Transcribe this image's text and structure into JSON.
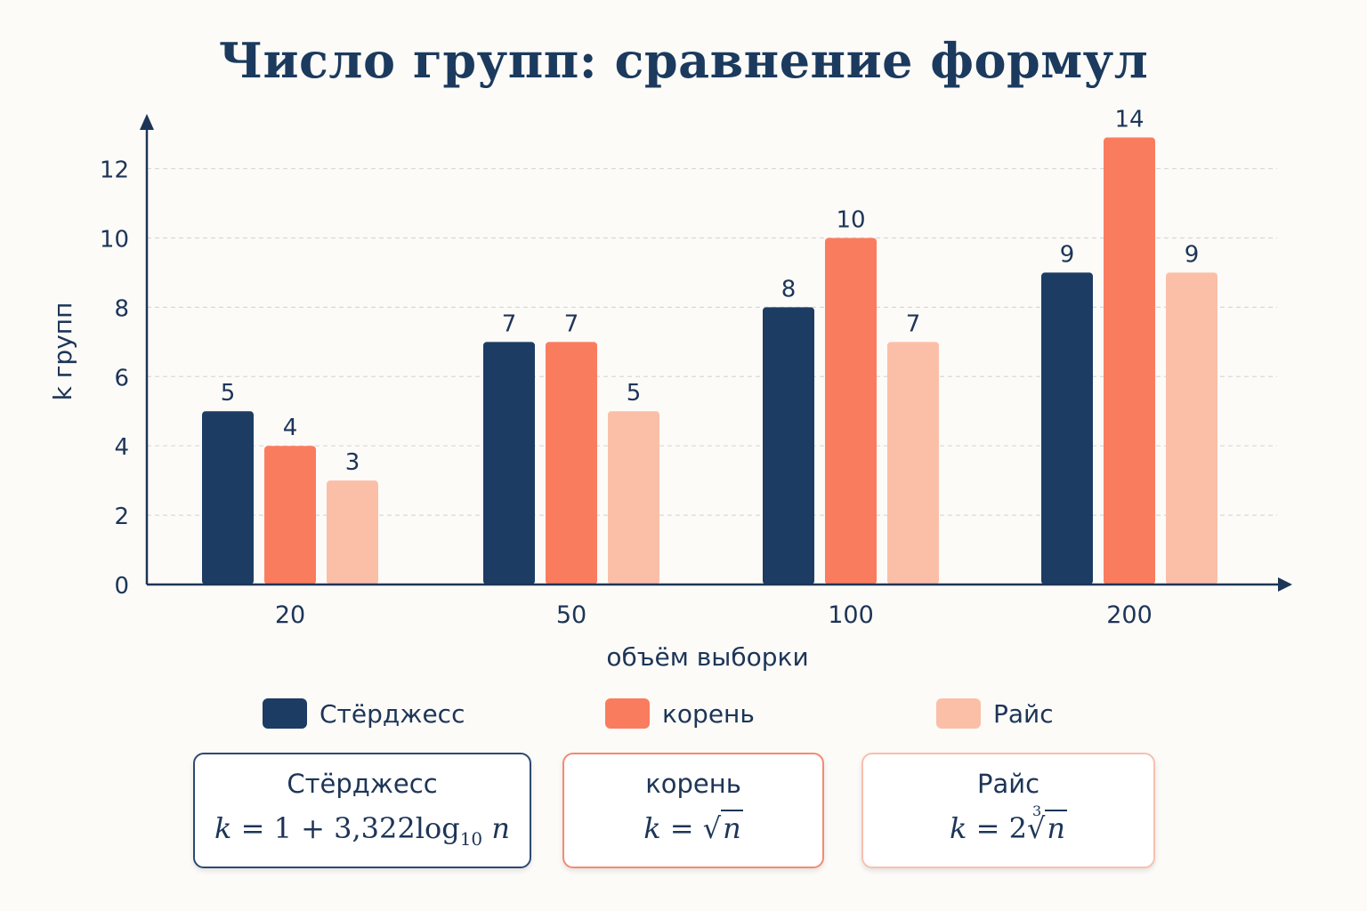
{
  "title": "Число групп: сравнение формул",
  "colors": {
    "sturges": "#1d3c63",
    "root": "#fa7c5f",
    "rice": "#fbbfa8",
    "axis": "#1d3557",
    "grid": "#d9d9d9"
  },
  "chart_data": {
    "type": "bar",
    "categories": [
      "20",
      "50",
      "100",
      "200"
    ],
    "series": [
      {
        "name": "Стёрджесс",
        "values": [
          5,
          7,
          8,
          9
        ]
      },
      {
        "name": "корень",
        "values": [
          4,
          7,
          10,
          14
        ]
      },
      {
        "name": "Райс",
        "values": [
          3,
          5,
          7,
          9
        ]
      }
    ],
    "bar_heights": [
      [
        5,
        7,
        8,
        9
      ],
      [
        4,
        7,
        10,
        12.9
      ],
      [
        3,
        5,
        7,
        9
      ]
    ],
    "xlabel": "объём выборки",
    "ylabel": "k групп",
    "ylim": [
      0,
      13.8
    ],
    "yticks": [
      "0",
      "2",
      "4",
      "6",
      "8",
      "10",
      "12"
    ],
    "grid": true,
    "legend_position": "bottom"
  },
  "legend": [
    {
      "label": "Стёрджесс"
    },
    {
      "label": "корень"
    },
    {
      "label": "Райс"
    }
  ],
  "formulas": [
    {
      "name": "Стёрджесс",
      "lhs": "k",
      "eq": "= 1 + 3,322",
      "log": "log",
      "base": "10",
      "var": "n"
    },
    {
      "name": "корень",
      "lhs": "k",
      "eq": "=",
      "radical": "√",
      "var": "n"
    },
    {
      "name": "Райс",
      "lhs": "k",
      "eq": "= 2",
      "index": "3",
      "radical": "√",
      "var": "n"
    }
  ]
}
